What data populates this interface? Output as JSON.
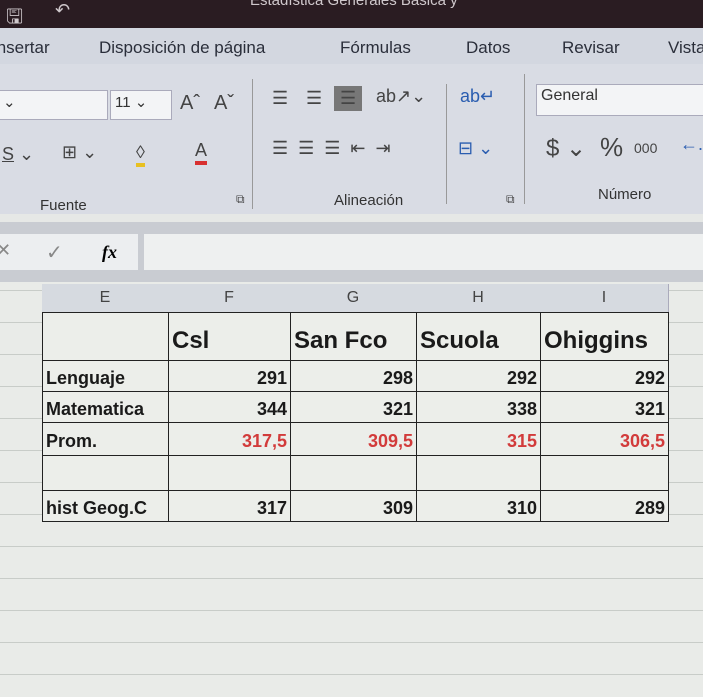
{
  "window": {
    "title": "Estadística Generales Básica y"
  },
  "tabs": [
    "Insertar",
    "Disposición de página",
    "Fórmulas",
    "Datos",
    "Revisar",
    "Vista"
  ],
  "ribbon": {
    "font_size": "11",
    "number_format": "General",
    "groups": [
      "Fuente",
      "Alineación",
      "Número"
    ],
    "currency_symbol": "$",
    "percent_symbol": "%",
    "thousands": "000"
  },
  "formula_bar": {
    "fx": "fx",
    "value": ""
  },
  "columns": [
    "E",
    "F",
    "G",
    "H",
    "I"
  ],
  "table": {
    "headers": [
      "",
      "Csl",
      "San Fco",
      "Scuola",
      "Ohiggins"
    ],
    "rows": [
      {
        "label": "Lenguaje",
        "values": [
          "291",
          "298",
          "292",
          "292"
        ]
      },
      {
        "label": "Matematica",
        "values": [
          "344",
          "321",
          "338",
          "321"
        ]
      },
      {
        "label": "Prom.",
        "values": [
          "317,5",
          "309,5",
          "315",
          "306,5"
        ],
        "color": "#d23b3b"
      },
      {
        "label": "",
        "values": [
          "",
          "",
          "",
          ""
        ]
      },
      {
        "label": "hist Geog.C",
        "values": [
          "317",
          "309",
          "310",
          "289"
        ]
      }
    ]
  }
}
